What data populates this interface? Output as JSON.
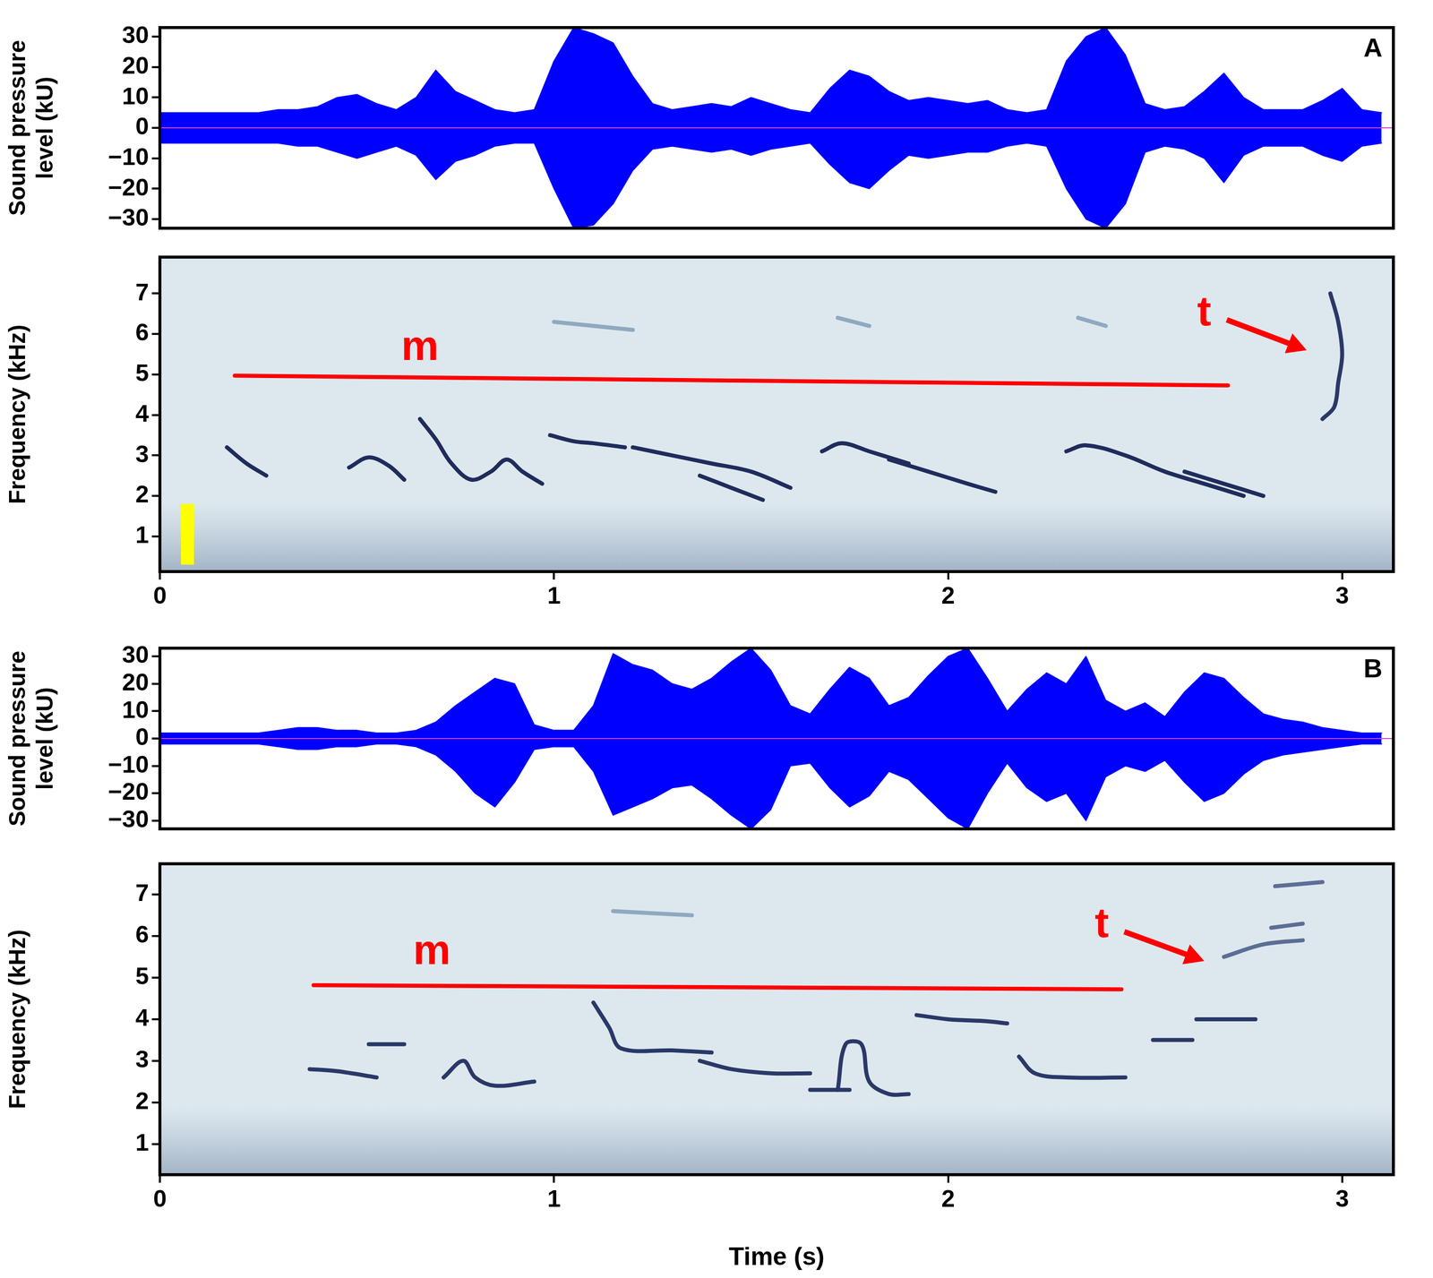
{
  "chart_data": [
    {
      "panel": "A",
      "type": "area",
      "ylabel": [
        "Sound pressure",
        "level (kU)"
      ],
      "xlim": [
        0,
        3.13
      ],
      "ylim": [
        -33,
        33
      ],
      "yticks": [
        {
          "value": -30,
          "label": "−30"
        },
        {
          "value": -20,
          "label": "−20"
        },
        {
          "value": -10,
          "label": "−10"
        },
        0,
        10,
        20,
        30
      ],
      "grid": false,
      "tick_labels": "y",
      "x": [
        0,
        0.05,
        0.1,
        0.15,
        0.2,
        0.25,
        0.3,
        0.35,
        0.4,
        0.45,
        0.5,
        0.55,
        0.6,
        0.65,
        0.7,
        0.75,
        0.8,
        0.85,
        0.9,
        0.95,
        1,
        1.05,
        1.1,
        1.15,
        1.2,
        1.25,
        1.3,
        1.35,
        1.4,
        1.45,
        1.5,
        1.55,
        1.6,
        1.65,
        1.7,
        1.75,
        1.8,
        1.85,
        1.9,
        1.95,
        2,
        2.05,
        2.1,
        2.15,
        2.2,
        2.25,
        2.3,
        2.35,
        2.4,
        2.45,
        2.5,
        2.55,
        2.6,
        2.65,
        2.7,
        2.75,
        2.8,
        2.85,
        2.9,
        2.95,
        3,
        3.05,
        3.1
      ],
      "series": [
        {
          "color": "#0000ff",
          "values": [
            5,
            5,
            5,
            5,
            5,
            5,
            6,
            6,
            7,
            10,
            11,
            8,
            6,
            10,
            19,
            12,
            9,
            6,
            5,
            6,
            22,
            33,
            31,
            28,
            17,
            8,
            6,
            7,
            8,
            7,
            10,
            8,
            6,
            5,
            13,
            19,
            17,
            12,
            9,
            10,
            9,
            8,
            9,
            6,
            5,
            6,
            22,
            30,
            33,
            24,
            8,
            6,
            7,
            12,
            18,
            10,
            6,
            6,
            6,
            9,
            13,
            6,
            5
          ]
        },
        {
          "color": "#0000ff",
          "values": [
            -5,
            -5,
            -5,
            -5,
            -5,
            -5,
            -5,
            -6,
            -6,
            -8,
            -10,
            -8,
            -6,
            -9,
            -17,
            -11,
            -9,
            -6,
            -5,
            -5,
            -20,
            -33,
            -32,
            -25,
            -14,
            -7,
            -6,
            -7,
            -8,
            -7,
            -9,
            -7,
            -6,
            -5,
            -12,
            -18,
            -20,
            -14,
            -9,
            -10,
            -9,
            -8,
            -8,
            -6,
            -5,
            -6,
            -20,
            -30,
            -33,
            -25,
            -8,
            -6,
            -7,
            -10,
            -18,
            -9,
            -6,
            -6,
            -6,
            -9,
            -11,
            -6,
            -5
          ]
        }
      ]
    },
    {
      "type": "line",
      "ylabel": "Frequency (kHz)",
      "xlim": [
        0,
        3.13
      ],
      "xticks": [
        0,
        1,
        2,
        3
      ],
      "ylim": [
        0.13,
        7.9
      ],
      "yticks": [
        1,
        2,
        3,
        4,
        5,
        6,
        7
      ],
      "grid": false,
      "series": [
        {
          "color": "#1f2c5c",
          "values": [
            [
              0.17,
              3.2
            ],
            [
              0.22,
              2.8
            ],
            [
              0.27,
              2.5
            ]
          ]
        },
        {
          "color": "#1f2c5c",
          "values": [
            [
              0.48,
              2.7
            ],
            [
              0.53,
              2.95
            ],
            [
              0.58,
              2.75
            ],
            [
              0.62,
              2.4
            ]
          ]
        },
        {
          "color": "#1f2c5c",
          "values": [
            [
              0.66,
              3.9
            ],
            [
              0.7,
              3.4
            ],
            [
              0.74,
              2.8
            ],
            [
              0.79,
              2.4
            ],
            [
              0.84,
              2.6
            ],
            [
              0.88,
              2.9
            ],
            [
              0.92,
              2.6
            ],
            [
              0.97,
              2.3
            ]
          ]
        },
        {
          "color": "#1f2c5c",
          "values": [
            [
              0.99,
              3.5
            ],
            [
              1.05,
              3.35
            ],
            [
              1.1,
              3.3
            ],
            [
              1.18,
              3.2
            ]
          ]
        },
        {
          "color": "#1f2c5c",
          "values": [
            [
              1.2,
              3.2
            ],
            [
              1.3,
              3.0
            ],
            [
              1.4,
              2.8
            ],
            [
              1.5,
              2.6
            ],
            [
              1.6,
              2.2
            ]
          ]
        },
        {
          "color": "#1f2c5c",
          "values": [
            [
              1.37,
              2.5
            ],
            [
              1.45,
              2.2
            ],
            [
              1.53,
              1.9
            ]
          ]
        },
        {
          "color": "#1f2c5c",
          "values": [
            [
              1.68,
              3.1
            ],
            [
              1.73,
              3.3
            ],
            [
              1.8,
              3.1
            ],
            [
              1.9,
              2.8
            ]
          ]
        },
        {
          "color": "#1f2c5c",
          "values": [
            [
              1.85,
              2.9
            ],
            [
              1.95,
              2.6
            ],
            [
              2.05,
              2.3
            ],
            [
              2.12,
              2.1
            ]
          ]
        },
        {
          "color": "#1f2c5c",
          "values": [
            [
              2.3,
              3.1
            ],
            [
              2.35,
              3.25
            ],
            [
              2.45,
              3.0
            ],
            [
              2.55,
              2.6
            ],
            [
              2.65,
              2.3
            ],
            [
              2.75,
              2.0
            ]
          ]
        },
        {
          "color": "#1f2c5c",
          "values": [
            [
              2.6,
              2.6
            ],
            [
              2.7,
              2.3
            ],
            [
              2.8,
              2.0
            ]
          ]
        },
        {
          "color": "#8fa9c0",
          "values": [
            [
              1.0,
              6.3
            ],
            [
              1.1,
              6.2
            ],
            [
              1.2,
              6.1
            ]
          ]
        },
        {
          "color": "#8fa9c0",
          "values": [
            [
              1.72,
              6.4
            ],
            [
              1.8,
              6.2
            ]
          ]
        },
        {
          "color": "#8fa9c0",
          "values": [
            [
              2.33,
              6.4
            ],
            [
              2.4,
              6.2
            ]
          ]
        },
        {
          "color": "#2a3868",
          "values": [
            [
              2.97,
              7.0
            ],
            [
              2.99,
              6.3
            ],
            [
              3.0,
              5.5
            ],
            [
              2.99,
              4.8
            ],
            [
              2.98,
              4.2
            ],
            [
              2.95,
              3.9
            ]
          ]
        },
        {
          "color": "#ff0000",
          "values": [
            [
              0.19,
              4.97
            ],
            [
              2.71,
              4.73
            ]
          ]
        },
        {
          "color": "#ffff00",
          "line_style": "bar",
          "values": [
            [
              0.07,
              0.3
            ],
            [
              0.07,
              1.8
            ]
          ]
        }
      ],
      "annotations": [
        {
          "text": "m",
          "x": 0.66,
          "y": 5.64,
          "color": "#ff0000"
        },
        {
          "text": "t",
          "x": 2.65,
          "y": 6.5,
          "color": "#ff0000",
          "arrow_to": [
            2.91,
            5.6
          ]
        }
      ]
    },
    {
      "panel": "B",
      "type": "area",
      "ylabel": [
        "Sound pressure",
        "level (kU)"
      ],
      "xlim": [
        0,
        3.13
      ],
      "ylim": [
        -33,
        33
      ],
      "yticks": [
        {
          "value": -30,
          "label": "−30"
        },
        {
          "value": -20,
          "label": "−20"
        },
        {
          "value": -10,
          "label": "−10"
        },
        0,
        10,
        20,
        30
      ],
      "grid": false,
      "tick_labels": "y",
      "x": [
        0,
        0.05,
        0.1,
        0.15,
        0.2,
        0.25,
        0.3,
        0.35,
        0.4,
        0.45,
        0.5,
        0.55,
        0.6,
        0.65,
        0.7,
        0.75,
        0.8,
        0.85,
        0.9,
        0.95,
        1,
        1.05,
        1.1,
        1.15,
        1.2,
        1.25,
        1.3,
        1.35,
        1.4,
        1.45,
        1.5,
        1.55,
        1.6,
        1.65,
        1.7,
        1.75,
        1.8,
        1.85,
        1.9,
        1.95,
        2,
        2.05,
        2.1,
        2.15,
        2.2,
        2.25,
        2.3,
        2.35,
        2.4,
        2.45,
        2.5,
        2.55,
        2.6,
        2.65,
        2.7,
        2.75,
        2.8,
        2.85,
        2.9,
        2.95,
        3,
        3.05,
        3.1
      ],
      "series": [
        {
          "color": "#0000ff",
          "values": [
            2,
            2,
            2,
            2,
            2,
            2,
            3,
            4,
            4,
            3,
            3,
            2,
            2,
            3,
            6,
            12,
            17,
            22,
            20,
            5,
            3,
            3,
            12,
            31,
            27,
            25,
            20,
            18,
            22,
            28,
            33,
            25,
            12,
            9,
            18,
            26,
            22,
            12,
            15,
            23,
            30,
            33,
            22,
            10,
            18,
            24,
            20,
            30,
            14,
            10,
            13,
            8,
            17,
            24,
            22,
            15,
            9,
            7,
            6,
            4,
            3,
            2,
            2
          ]
        },
        {
          "color": "#0000ff",
          "values": [
            -2,
            -2,
            -2,
            -2,
            -2,
            -2,
            -3,
            -4,
            -4,
            -3,
            -3,
            -2,
            -2,
            -3,
            -6,
            -12,
            -20,
            -25,
            -16,
            -4,
            -3,
            -3,
            -12,
            -28,
            -25,
            -22,
            -18,
            -17,
            -22,
            -28,
            -33,
            -26,
            -10,
            -9,
            -18,
            -25,
            -21,
            -12,
            -15,
            -22,
            -29,
            -33,
            -20,
            -9,
            -18,
            -23,
            -20,
            -30,
            -14,
            -10,
            -12,
            -8,
            -16,
            -23,
            -20,
            -13,
            -8,
            -6,
            -5,
            -4,
            -3,
            -2,
            -2
          ]
        }
      ]
    },
    {
      "type": "line",
      "ylabel": "Frequency (kHz)",
      "xlabel": "Time (s)",
      "xlim": [
        0,
        3.13
      ],
      "xticks": [
        0,
        1,
        2,
        3
      ],
      "ylim": [
        0.26,
        7.74
      ],
      "yticks": [
        1,
        2,
        3,
        4,
        5,
        6,
        7
      ],
      "grid": false,
      "series": [
        {
          "color": "#2a3868",
          "values": [
            [
              0.38,
              2.8
            ],
            [
              0.45,
              2.75
            ],
            [
              0.55,
              2.6
            ]
          ]
        },
        {
          "color": "#2a3868",
          "values": [
            [
              0.53,
              3.4
            ],
            [
              0.62,
              3.4
            ]
          ]
        },
        {
          "color": "#2a3868",
          "values": [
            [
              0.72,
              2.6
            ],
            [
              0.77,
              3.0
            ],
            [
              0.8,
              2.6
            ],
            [
              0.85,
              2.4
            ],
            [
              0.95,
              2.5
            ]
          ]
        },
        {
          "color": "#2a3868",
          "values": [
            [
              1.1,
              4.4
            ],
            [
              1.14,
              3.8
            ],
            [
              1.17,
              3.3
            ],
            [
              1.3,
              3.25
            ],
            [
              1.4,
              3.2
            ]
          ]
        },
        {
          "color": "#2a3868",
          "values": [
            [
              1.37,
              3.0
            ],
            [
              1.45,
              2.8
            ],
            [
              1.55,
              2.7
            ],
            [
              1.65,
              2.7
            ]
          ]
        },
        {
          "color": "#2a3868",
          "values": [
            [
              1.65,
              2.3
            ],
            [
              1.75,
              2.3
            ]
          ]
        },
        {
          "color": "#2a3868",
          "values": [
            [
              1.72,
              2.3
            ],
            [
              1.74,
              3.4
            ],
            [
              1.78,
              3.4
            ],
            [
              1.8,
              2.5
            ],
            [
              1.85,
              2.2
            ],
            [
              1.9,
              2.2
            ]
          ]
        },
        {
          "color": "#2a3868",
          "values": [
            [
              1.92,
              4.1
            ],
            [
              2.0,
              4.0
            ],
            [
              2.1,
              3.95
            ],
            [
              2.15,
              3.9
            ]
          ]
        },
        {
          "color": "#2a3868",
          "values": [
            [
              2.18,
              3.1
            ],
            [
              2.22,
              2.7
            ],
            [
              2.3,
              2.6
            ],
            [
              2.45,
              2.6
            ]
          ]
        },
        {
          "color": "#2a3868",
          "values": [
            [
              2.52,
              3.5
            ],
            [
              2.62,
              3.5
            ]
          ]
        },
        {
          "color": "#2a3868",
          "values": [
            [
              2.63,
              4.0
            ],
            [
              2.78,
              4.0
            ]
          ]
        },
        {
          "color": "#5c6d96",
          "values": [
            [
              2.7,
              5.5
            ],
            [
              2.8,
              5.8
            ],
            [
              2.9,
              5.9
            ]
          ]
        },
        {
          "color": "#5c6d96",
          "values": [
            [
              2.82,
              6.2
            ],
            [
              2.9,
              6.3
            ]
          ]
        },
        {
          "color": "#5c6d96",
          "values": [
            [
              2.83,
              7.2
            ],
            [
              2.95,
              7.3
            ]
          ]
        },
        {
          "color": "#8fa9c0",
          "values": [
            [
              1.15,
              6.6
            ],
            [
              1.35,
              6.5
            ]
          ]
        },
        {
          "color": "#ff0000",
          "values": [
            [
              0.39,
              4.82
            ],
            [
              2.44,
              4.72
            ]
          ]
        }
      ],
      "annotations": [
        {
          "text": "m",
          "x": 0.69,
          "y": 5.6,
          "color": "#ff0000"
        },
        {
          "text": "t",
          "x": 2.39,
          "y": 6.25,
          "color": "#ff0000",
          "arrow_to": [
            2.65,
            5.4
          ]
        }
      ]
    }
  ]
}
